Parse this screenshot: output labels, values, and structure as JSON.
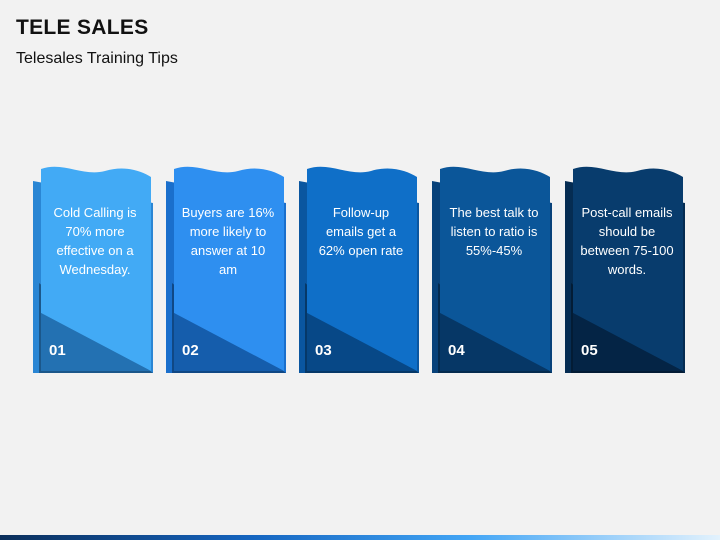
{
  "header": {
    "title": "TELE SALES",
    "subtitle": "Telesales Training Tips"
  },
  "cards": [
    {
      "number": "01",
      "text": "Cold Calling is 70% more effective on a Wednesday.",
      "color": "#42aaf5",
      "dark": "#2a86d4"
    },
    {
      "number": "02",
      "text": "Buyers are 16% more likely to answer at 10 am",
      "color": "#2e8ff0",
      "dark": "#1a6fcc"
    },
    {
      "number": "03",
      "text": "Follow-up emails get a 62% open rate",
      "color": "#0f6fc8",
      "dark": "#0a56a0"
    },
    {
      "number": "04",
      "text": "The best talk to listen to ratio is 55%-45%",
      "color": "#0b5699",
      "dark": "#08427a"
    },
    {
      "number": "05",
      "text": "Post-call emails should be between 75-100 words.",
      "color": "#083c6d",
      "dark": "#052c52"
    }
  ]
}
